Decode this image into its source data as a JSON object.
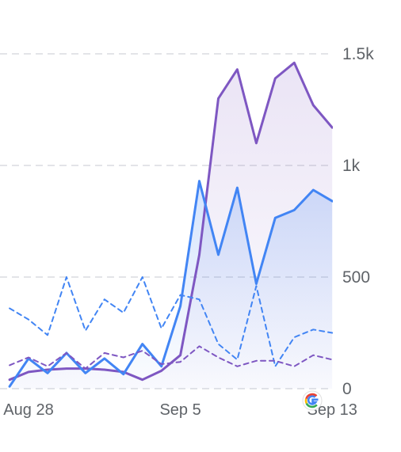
{
  "chart_data": {
    "type": "line",
    "title": "",
    "xlabel": "",
    "ylabel": "",
    "ylim": [
      0,
      1500
    ],
    "y_ticks": [
      {
        "value": 0,
        "label": "0"
      },
      {
        "value": 500,
        "label": "500"
      },
      {
        "value": 1000,
        "label": "1k"
      },
      {
        "value": 1500,
        "label": "1.5k"
      }
    ],
    "x_ticks": [
      {
        "index": 0,
        "label": "Aug 28"
      },
      {
        "index": 8,
        "label": "Sep 5"
      },
      {
        "index": 16,
        "label": "Sep 13"
      }
    ],
    "x": [
      "Aug 28",
      "Aug 29",
      "Aug 30",
      "Aug 31",
      "Sep 1",
      "Sep 2",
      "Sep 3",
      "Sep 4",
      "Sep 5",
      "Sep 6",
      "Sep 7",
      "Sep 8",
      "Sep 9",
      "Sep 10",
      "Sep 11",
      "Sep 12",
      "Sep 13"
    ],
    "grid": true,
    "legend": "none",
    "series": [
      {
        "color": "#7e57c2",
        "style": "solid",
        "fill": true,
        "prev_value": 40,
        "values": [
          75,
          85,
          90,
          90,
          85,
          75,
          40,
          80,
          150,
          600,
          1300,
          1430,
          1100,
          1390,
          1460,
          1270,
          1170
        ]
      },
      {
        "color": "#4285f4",
        "style": "solid",
        "fill": true,
        "prev_value": 10,
        "values": [
          135,
          70,
          160,
          70,
          135,
          65,
          200,
          100,
          370,
          930,
          600,
          900,
          470,
          765,
          800,
          890,
          840
        ]
      },
      {
        "color": "#4285f4",
        "style": "dashed",
        "fill": false,
        "prev_value": 360,
        "values": [
          310,
          240,
          500,
          260,
          400,
          340,
          500,
          270,
          420,
          400,
          200,
          130,
          460,
          100,
          230,
          265,
          250
        ]
      },
      {
        "color": "#7e57c2",
        "style": "dashed",
        "fill": false,
        "prev_value": 105,
        "values": [
          140,
          100,
          160,
          90,
          160,
          140,
          170,
          110,
          120,
          190,
          140,
          100,
          125,
          125,
          100,
          150,
          130
        ]
      }
    ]
  },
  "attribution": {
    "icon": "google-g-icon"
  }
}
